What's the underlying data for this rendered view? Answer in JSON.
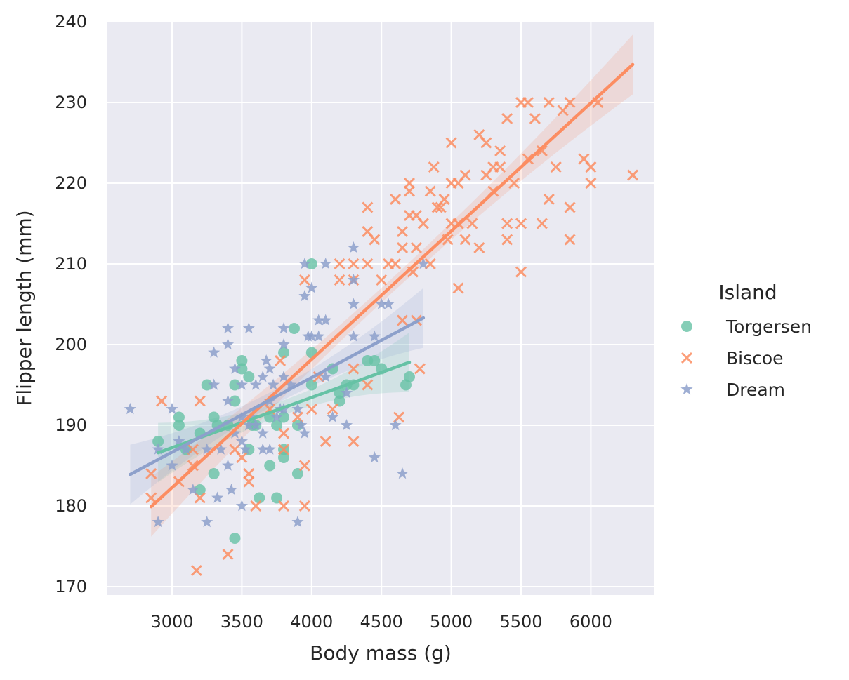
{
  "chart_data": {
    "type": "scatter",
    "xlabel": "Body mass (g)",
    "ylabel": "Flipper length (mm)",
    "xlim": [
      2450,
      6525
    ],
    "ylim": [
      169,
      241
    ],
    "xticks": [
      3000,
      3500,
      4000,
      4500,
      5000,
      5500,
      6000
    ],
    "yticks": [
      170,
      180,
      190,
      200,
      210,
      220,
      230,
      240
    ],
    "grid": true,
    "legend": {
      "title": "Island",
      "placement": "right"
    },
    "colors": {
      "Torgersen": "#66c2a5",
      "Biscoe": "#fc8d62",
      "Dream": "#8da0cb",
      "background": "#eaeaf2",
      "grid": "#ffffff"
    },
    "series": [
      {
        "name": "Torgersen",
        "marker": "circle",
        "points": [
          [
            2900,
            188
          ],
          [
            3050,
            191
          ],
          [
            3050,
            190
          ],
          [
            3100,
            187
          ],
          [
            3200,
            189
          ],
          [
            3200,
            182
          ],
          [
            3250,
            195
          ],
          [
            3300,
            191
          ],
          [
            3300,
            184
          ],
          [
            3325,
            190
          ],
          [
            3400,
            190
          ],
          [
            3450,
            195
          ],
          [
            3450,
            193
          ],
          [
            3450,
            176
          ],
          [
            3500,
            198
          ],
          [
            3500,
            197
          ],
          [
            3550,
            196
          ],
          [
            3550,
            187
          ],
          [
            3575,
            190
          ],
          [
            3600,
            190
          ],
          [
            3625,
            181
          ],
          [
            3700,
            191
          ],
          [
            3700,
            185
          ],
          [
            3750,
            190
          ],
          [
            3750,
            181
          ],
          [
            3800,
            199
          ],
          [
            3800,
            187
          ],
          [
            3800,
            186
          ],
          [
            3800,
            191
          ],
          [
            3875,
            202
          ],
          [
            3900,
            190
          ],
          [
            3900,
            184
          ],
          [
            4000,
            210
          ],
          [
            4000,
            195
          ],
          [
            4000,
            199
          ],
          [
            4150,
            197
          ],
          [
            4200,
            194
          ],
          [
            4200,
            193
          ],
          [
            4250,
            195
          ],
          [
            4300,
            195
          ],
          [
            4400,
            198
          ],
          [
            4450,
            198
          ],
          [
            4500,
            197
          ],
          [
            4675,
            195
          ],
          [
            4700,
            196
          ]
        ],
        "regression": {
          "x": [
            2900,
            4700
          ],
          "y": [
            186.6,
            197.8
          ]
        }
      },
      {
        "name": "Biscoe",
        "marker": "x",
        "points": [
          [
            2850,
            184
          ],
          [
            2850,
            181
          ],
          [
            2925,
            193
          ],
          [
            3050,
            183
          ],
          [
            3150,
            187
          ],
          [
            3150,
            185
          ],
          [
            3175,
            172
          ],
          [
            3200,
            181
          ],
          [
            3200,
            193
          ],
          [
            3400,
            174
          ],
          [
            3450,
            187
          ],
          [
            3500,
            186
          ],
          [
            3550,
            184
          ],
          [
            3550,
            183
          ],
          [
            3600,
            180
          ],
          [
            3700,
            192
          ],
          [
            3775,
            198
          ],
          [
            3800,
            189
          ],
          [
            3800,
            187
          ],
          [
            3800,
            180
          ],
          [
            3900,
            191
          ],
          [
            3950,
            180
          ],
          [
            3950,
            185
          ],
          [
            3950,
            208
          ],
          [
            4000,
            192
          ],
          [
            4050,
            196
          ],
          [
            4100,
            188
          ],
          [
            4150,
            192
          ],
          [
            4200,
            208
          ],
          [
            4200,
            210
          ],
          [
            4300,
            210
          ],
          [
            4300,
            208
          ],
          [
            4300,
            188
          ],
          [
            4300,
            197
          ],
          [
            4400,
            217
          ],
          [
            4400,
            195
          ],
          [
            4400,
            214
          ],
          [
            4400,
            210
          ],
          [
            4450,
            213
          ],
          [
            4500,
            208
          ],
          [
            4550,
            210
          ],
          [
            4600,
            210
          ],
          [
            4600,
            218
          ],
          [
            4625,
            191
          ],
          [
            4650,
            212
          ],
          [
            4650,
            214
          ],
          [
            4650,
            203
          ],
          [
            4700,
            220
          ],
          [
            4700,
            216
          ],
          [
            4700,
            219
          ],
          [
            4725,
            209
          ],
          [
            4750,
            216
          ],
          [
            4750,
            212
          ],
          [
            4750,
            203
          ],
          [
            4775,
            197
          ],
          [
            4800,
            215
          ],
          [
            4850,
            219
          ],
          [
            4850,
            210
          ],
          [
            4875,
            222
          ],
          [
            4900,
            217
          ],
          [
            4925,
            217
          ],
          [
            4950,
            218
          ],
          [
            4975,
            213
          ],
          [
            5000,
            215
          ],
          [
            5000,
            220
          ],
          [
            5000,
            225
          ],
          [
            5050,
            220
          ],
          [
            5050,
            215
          ],
          [
            5050,
            207
          ],
          [
            5100,
            221
          ],
          [
            5100,
            213
          ],
          [
            5150,
            215
          ],
          [
            5200,
            226
          ],
          [
            5200,
            212
          ],
          [
            5250,
            221
          ],
          [
            5250,
            225
          ],
          [
            5300,
            222
          ],
          [
            5300,
            219
          ],
          [
            5350,
            224
          ],
          [
            5350,
            222
          ],
          [
            5400,
            215
          ],
          [
            5400,
            213
          ],
          [
            5400,
            228
          ],
          [
            5450,
            220
          ],
          [
            5500,
            230
          ],
          [
            5500,
            215
          ],
          [
            5500,
            209
          ],
          [
            5550,
            230
          ],
          [
            5550,
            223
          ],
          [
            5600,
            228
          ],
          [
            5650,
            224
          ],
          [
            5650,
            215
          ],
          [
            5700,
            230
          ],
          [
            5700,
            218
          ],
          [
            5750,
            222
          ],
          [
            5800,
            229
          ],
          [
            5850,
            230
          ],
          [
            5850,
            217
          ],
          [
            5850,
            213
          ],
          [
            5950,
            223
          ],
          [
            6000,
            220
          ],
          [
            6000,
            222
          ],
          [
            6050,
            230
          ],
          [
            6300,
            221
          ]
        ],
        "regression": {
          "x": [
            2850,
            6300
          ],
          "y": [
            179.9,
            234.7
          ]
        }
      },
      {
        "name": "Dream",
        "marker": "star",
        "points": [
          [
            2700,
            192
          ],
          [
            2900,
            178
          ],
          [
            2900,
            187
          ],
          [
            3000,
            185
          ],
          [
            3000,
            192
          ],
          [
            3050,
            188
          ],
          [
            3100,
            187
          ],
          [
            3150,
            182
          ],
          [
            3250,
            187
          ],
          [
            3250,
            178
          ],
          [
            3300,
            199
          ],
          [
            3300,
            195
          ],
          [
            3325,
            181
          ],
          [
            3350,
            187
          ],
          [
            3400,
            185
          ],
          [
            3400,
            193
          ],
          [
            3400,
            202
          ],
          [
            3400,
            200
          ],
          [
            3425,
            182
          ],
          [
            3450,
            197
          ],
          [
            3450,
            189
          ],
          [
            3500,
            195
          ],
          [
            3500,
            191
          ],
          [
            3500,
            188
          ],
          [
            3500,
            180
          ],
          [
            3525,
            187
          ],
          [
            3550,
            202
          ],
          [
            3550,
            190
          ],
          [
            3575,
            191
          ],
          [
            3600,
            195
          ],
          [
            3600,
            190
          ],
          [
            3650,
            189
          ],
          [
            3650,
            196
          ],
          [
            3650,
            187
          ],
          [
            3675,
            198
          ],
          [
            3700,
            187
          ],
          [
            3700,
            193
          ],
          [
            3700,
            197
          ],
          [
            3725,
            195
          ],
          [
            3750,
            191
          ],
          [
            3775,
            192
          ],
          [
            3800,
            200
          ],
          [
            3800,
            202
          ],
          [
            3800,
            196
          ],
          [
            3800,
            192
          ],
          [
            3850,
            195
          ],
          [
            3900,
            192
          ],
          [
            3900,
            178
          ],
          [
            3925,
            190
          ],
          [
            3950,
            210
          ],
          [
            3950,
            206
          ],
          [
            3950,
            189
          ],
          [
            3975,
            201
          ],
          [
            4000,
            207
          ],
          [
            4000,
            201
          ],
          [
            4050,
            203
          ],
          [
            4050,
            201
          ],
          [
            4100,
            210
          ],
          [
            4100,
            203
          ],
          [
            4100,
            196
          ],
          [
            4150,
            191
          ],
          [
            4250,
            194
          ],
          [
            4250,
            190
          ],
          [
            4300,
            212
          ],
          [
            4300,
            208
          ],
          [
            4300,
            205
          ],
          [
            4300,
            201
          ],
          [
            4450,
            201
          ],
          [
            4450,
            186
          ],
          [
            4500,
            205
          ],
          [
            4550,
            205
          ],
          [
            4600,
            190
          ],
          [
            4650,
            184
          ],
          [
            4800,
            210
          ]
        ],
        "regression": {
          "x": [
            2700,
            4800
          ],
          "y": [
            183.9,
            203.3
          ]
        }
      }
    ]
  }
}
